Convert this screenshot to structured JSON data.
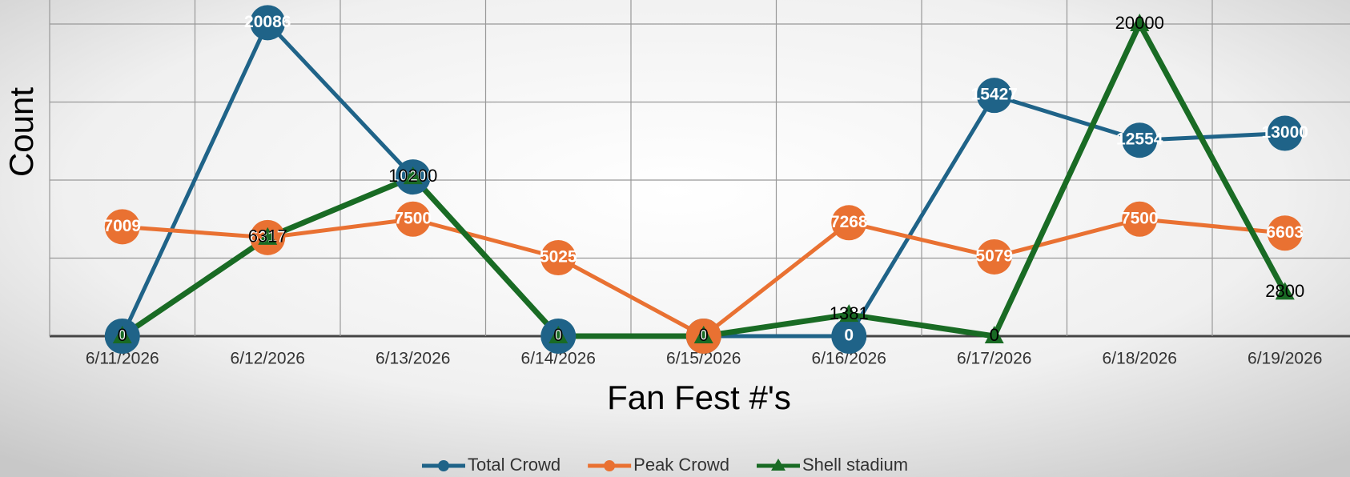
{
  "chart_data": {
    "type": "line",
    "title": "Fan Fest #'s",
    "y_label": "Count",
    "categories": [
      "6/11/2026",
      "6/12/2026",
      "6/13/2026",
      "6/14/2026",
      "6/15/2026",
      "6/16/2026",
      "6/17/2026",
      "6/18/2026",
      "6/19/2026"
    ],
    "series": [
      {
        "name": "Total Crowd",
        "color": "#1f6388",
        "marker": "circle",
        "values": [
          0,
          20086,
          10200,
          0,
          0,
          0,
          15427,
          12554,
          13000
        ]
      },
      {
        "name": "Peak Crowd",
        "color": "#e97132",
        "marker": "circle",
        "values": [
          7009,
          6317,
          7500,
          5025,
          0,
          7268,
          5079,
          7500,
          6603
        ]
      },
      {
        "name": "Shell stadium",
        "color": "#196b24",
        "marker": "triangle",
        "values": [
          0,
          6317,
          10200,
          0,
          0,
          1381,
          0,
          20000,
          2800
        ]
      }
    ],
    "ylim": [
      0,
      21700
    ],
    "yticks": [
      0,
      5000,
      10000,
      15000,
      20000
    ],
    "grid": true,
    "legend": "bottom"
  }
}
